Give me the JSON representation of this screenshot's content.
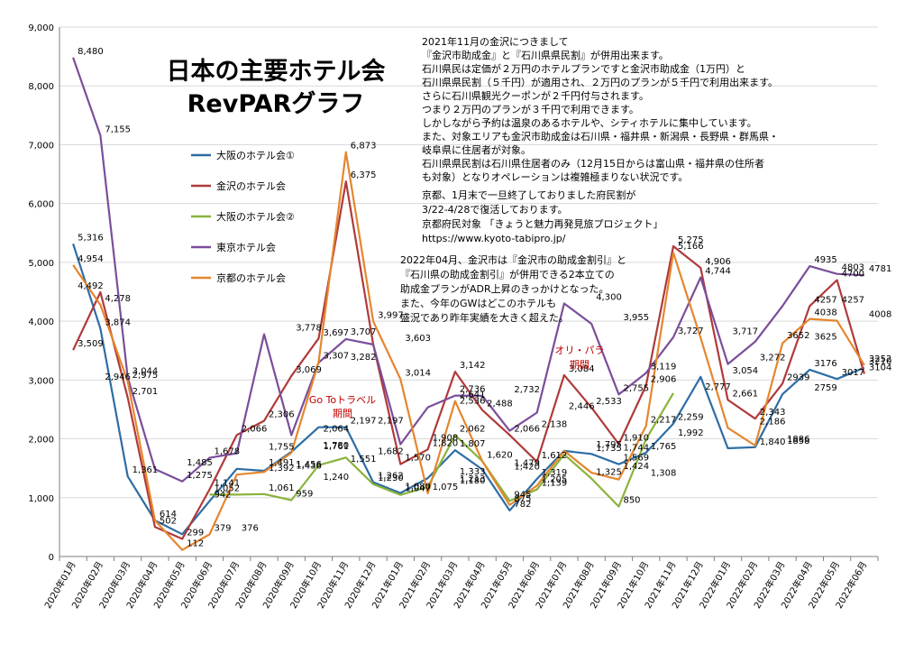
{
  "chart_data": {
    "type": "line",
    "title": [
      "日本の主要ホテル会",
      "RevPARグラフ"
    ],
    "xlabel": "",
    "ylabel": "",
    "ylim": [
      0,
      9000
    ],
    "yticks": [
      "0",
      "1,000",
      "2,000",
      "3,000",
      "4,000",
      "5,000",
      "6,000",
      "7,000",
      "8,000",
      "9,000"
    ],
    "grid": true,
    "legend_position": "left-center",
    "categories": [
      "2020年01月",
      "2020年02月",
      "2020年03月",
      "2020年04月",
      "2020年05月",
      "2020年06月",
      "2020年07月",
      "2020年08月",
      "2020年09月",
      "2020年10月",
      "2020年11月",
      "2020年12月",
      "2021年01月",
      "2021年02月",
      "2021年03月",
      "2021年04月",
      "2021年05月",
      "2021年06月",
      "2021年07月",
      "2021年08月",
      "2021年09月",
      "2021年10月",
      "2021年11月",
      "2021年12月",
      "2022年01月",
      "2022年02月",
      "2022年03月",
      "2022年04月",
      "2022年05月",
      "2022年06月"
    ],
    "series": [
      {
        "name": "大阪のホテル会①",
        "color": "#2e6da4",
        "values": [
          5316,
          3874,
          1361,
          614,
          379,
          942,
          1491,
          1456,
          1780,
          2197,
          2197,
          1262,
          1080,
          1333,
          1807,
          1479,
          782,
          1319,
          1795,
          1744,
          1569,
          1765,
          2259,
          3054,
          1840,
          1858,
          2759,
          3176,
          3017,
          3210
        ]
      },
      {
        "name": "金沢のホテル会",
        "color": "#b03a3a",
        "values": [
          3509,
          4492,
          2701,
          502,
          299,
          1141,
          2066,
          2306,
          3069,
          3707,
          6375,
          3603,
          1570,
          1820,
          3142,
          2488,
          2066,
          1612,
          3084,
          2533,
          1910,
          2906,
          5275,
          4906,
          2661,
          2343,
          2939,
          4257,
          4700,
          3104
        ]
      },
      {
        "name": "大阪のホテル会②",
        "color": "#8ab33d",
        "values": [
          null,
          null,
          null,
          null,
          null,
          1052,
          1052,
          1061,
          959,
          1551,
          1682,
          1230,
          1047,
          1180,
          2062,
          1620,
          945,
          1139,
          1735,
          1325,
          850,
          1992,
          2777,
          null,
          null,
          null,
          null,
          null,
          null,
          null
        ]
      },
      {
        "name": "東京ホテル会",
        "color": "#7a4e9a",
        "values": [
          8480,
          7155,
          3044,
          1485,
          1275,
          1678,
          1755,
          3778,
          2064,
          3297,
          3697,
          3603,
          1908,
          2536,
          2736,
          2732,
          2138,
          2446,
          4300,
          3955,
          2755,
          3119,
          3727,
          4744,
          3272,
          3652,
          4257,
          4935,
          4803,
          4781
        ]
      },
      {
        "name": "京都のホテル会",
        "color": "#e5862e",
        "values": [
          4954,
          4278,
          2975,
          614,
          112,
          376,
          1392,
          1436,
          1761,
          3307,
          6873,
          3997,
          3014,
          1075,
          2641,
          1620,
          875,
          1205,
          1795,
          1424,
          1308,
          2217,
          5166,
          3717,
          2186,
          1886,
          3625,
          4038,
          4008,
          3252
        ]
      }
    ],
    "data_labels": [
      {
        "text": "8,480",
        "category": 0,
        "value": 8480
      },
      {
        "text": "7,155",
        "category": 1,
        "value": 7155
      },
      {
        "text": "5,316",
        "category": 0,
        "value": 5316
      },
      {
        "text": "4,954",
        "category": 0,
        "value": 4954
      },
      {
        "text": "4,492",
        "category": 0,
        "value": 4492
      },
      {
        "text": "3,509",
        "category": 0,
        "value": 3509
      },
      {
        "text": "4,278",
        "category": 1,
        "value": 4278
      },
      {
        "text": "3,874",
        "category": 1,
        "value": 3874
      },
      {
        "text": "2,946",
        "category": 1,
        "value": 2946
      },
      {
        "text": "2,701",
        "category": 2,
        "value": 2701
      },
      {
        "text": "3,044",
        "category": 2,
        "value": 3044
      },
      {
        "text": "2,975",
        "category": 2,
        "value": 2975
      },
      {
        "text": "1,361",
        "category": 2,
        "value": 1361
      },
      {
        "text": "502",
        "category": 3,
        "value": 502
      },
      {
        "text": "614",
        "category": 3,
        "value": 614
      },
      {
        "text": "1,485",
        "category": 4,
        "value": 1485
      },
      {
        "text": "1,275",
        "category": 4,
        "value": 1275
      },
      {
        "text": "299",
        "category": 4,
        "value": 299
      },
      {
        "text": "112",
        "category": 4,
        "value": 112
      },
      {
        "text": "1,052",
        "category": 5,
        "value": 1052
      },
      {
        "text": "379",
        "category": 5,
        "value": 379
      },
      {
        "text": "1,141",
        "category": 5,
        "value": 1141
      },
      {
        "text": "942",
        "category": 5,
        "value": 942
      },
      {
        "text": "1,678",
        "category": 5,
        "value": 1678
      },
      {
        "text": "376",
        "category": 6,
        "value": 376
      },
      {
        "text": "2,066",
        "category": 6,
        "value": 2066
      },
      {
        "text": "1,755",
        "category": 7,
        "value": 1755
      },
      {
        "text": "1,491",
        "category": 7,
        "value": 1491
      },
      {
        "text": "1,392",
        "category": 7,
        "value": 1392
      },
      {
        "text": "1,061",
        "category": 7,
        "value": 1061
      },
      {
        "text": "2,306",
        "category": 7,
        "value": 2306
      },
      {
        "text": "3,778",
        "category": 8,
        "value": 3778
      },
      {
        "text": "1,456",
        "category": 8,
        "value": 1456
      },
      {
        "text": "1,436",
        "category": 8,
        "value": 1436
      },
      {
        "text": "959",
        "category": 8,
        "value": 959
      },
      {
        "text": "3,069",
        "category": 8,
        "value": 3069
      },
      {
        "text": "2,064",
        "category": 9,
        "value": 2064
      },
      {
        "text": "1,780",
        "category": 9,
        "value": 1780
      },
      {
        "text": "1,761",
        "category": 9,
        "value": 1761
      },
      {
        "text": "1,240",
        "category": 9,
        "value": 1240
      },
      {
        "text": "3,697",
        "category": 9,
        "value": 3697
      },
      {
        "text": "3,307",
        "category": 9,
        "value": 3307
      },
      {
        "text": "3,707",
        "category": 10,
        "value": 3707
      },
      {
        "text": "3,282",
        "category": 10,
        "value": 3282
      },
      {
        "text": "6,873",
        "category": 10,
        "value": 6873
      },
      {
        "text": "6,375",
        "category": 10,
        "value": 6375
      },
      {
        "text": "2,197",
        "category": 10,
        "value": 2197
      },
      {
        "text": "1,551",
        "category": 10,
        "value": 1551
      },
      {
        "text": "2,197",
        "category": 11,
        "value": 2197
      },
      {
        "text": "3,997",
        "category": 11,
        "value": 3997
      },
      {
        "text": "1,682",
        "category": 11,
        "value": 1682
      },
      {
        "text": "1,262",
        "category": 11,
        "value": 1262
      },
      {
        "text": "1,230",
        "category": 11,
        "value": 1230
      },
      {
        "text": "3,603",
        "category": 12,
        "value": 3603
      },
      {
        "text": "3,014",
        "category": 12,
        "value": 3014
      },
      {
        "text": "1,570",
        "category": 12,
        "value": 1570
      },
      {
        "text": "1,080",
        "category": 12,
        "value": 1080
      },
      {
        "text": "1,047",
        "category": 12,
        "value": 1047
      },
      {
        "text": "1,908",
        "category": 13,
        "value": 1908
      },
      {
        "text": "1,820",
        "category": 13,
        "value": 1820
      },
      {
        "text": "1,075",
        "category": 13,
        "value": 1075
      },
      {
        "text": "3,142",
        "category": 14,
        "value": 3142
      },
      {
        "text": "2,736",
        "category": 14,
        "value": 2736
      },
      {
        "text": "2,536",
        "category": 14,
        "value": 2536
      },
      {
        "text": "2,641",
        "category": 14,
        "value": 2641
      },
      {
        "text": "2,062",
        "category": 14,
        "value": 2062
      },
      {
        "text": "1,807",
        "category": 14,
        "value": 1807
      },
      {
        "text": "1,333",
        "category": 14,
        "value": 1333
      },
      {
        "text": "1,213",
        "category": 14,
        "value": 1213
      },
      {
        "text": "1,180",
        "category": 14,
        "value": 1180
      },
      {
        "text": "2,488",
        "category": 15,
        "value": 2488
      },
      {
        "text": "1,620",
        "category": 15,
        "value": 1620
      },
      {
        "text": "2,732",
        "category": 16,
        "value": 2732
      },
      {
        "text": "2,066",
        "category": 16,
        "value": 2066
      },
      {
        "text": "1,479",
        "category": 16,
        "value": 1479
      },
      {
        "text": "1,420",
        "category": 16,
        "value": 1420
      },
      {
        "text": "945",
        "category": 16,
        "value": 945
      },
      {
        "text": "875",
        "category": 16,
        "value": 875
      },
      {
        "text": "782",
        "category": 16,
        "value": 782
      },
      {
        "text": "2,138",
        "category": 17,
        "value": 2138
      },
      {
        "text": "1,612",
        "category": 17,
        "value": 1612
      },
      {
        "text": "1,319",
        "category": 17,
        "value": 1319
      },
      {
        "text": "1,205",
        "category": 17,
        "value": 1205
      },
      {
        "text": "1,139",
        "category": 17,
        "value": 1139
      },
      {
        "text": "2,446",
        "category": 18,
        "value": 2446
      },
      {
        "text": "3,084",
        "category": 18,
        "value": 3084
      },
      {
        "text": "4,300",
        "category": 19,
        "value": 4300
      },
      {
        "text": "2,533",
        "category": 19,
        "value": 2533
      },
      {
        "text": "1,795",
        "category": 19,
        "value": 1795
      },
      {
        "text": "1,735",
        "category": 19,
        "value": 1735
      },
      {
        "text": "1,325",
        "category": 19,
        "value": 1325
      },
      {
        "text": "3,955",
        "category": 20,
        "value": 3955
      },
      {
        "text": "1,910",
        "category": 20,
        "value": 1910
      },
      {
        "text": "1,744",
        "category": 20,
        "value": 1744
      },
      {
        "text": "1,569",
        "category": 20,
        "value": 1569
      },
      {
        "text": "1,424",
        "category": 20,
        "value": 1424
      },
      {
        "text": "850",
        "category": 20,
        "value": 850
      },
      {
        "text": "2,755",
        "category": 20,
        "value": 2755
      },
      {
        "text": "3,119",
        "category": 21,
        "value": 3119
      },
      {
        "text": "2,906",
        "category": 21,
        "value": 2906
      },
      {
        "text": "2,217",
        "category": 21,
        "value": 2217
      },
      {
        "text": "1,765",
        "category": 21,
        "value": 1765
      },
      {
        "text": "1,308",
        "category": 21,
        "value": 1308
      },
      {
        "text": "5,275",
        "category": 22,
        "value": 5275
      },
      {
        "text": "5,166",
        "category": 22,
        "value": 5166
      },
      {
        "text": "3,727",
        "category": 22,
        "value": 3727
      },
      {
        "text": "2,259",
        "category": 22,
        "value": 2259
      },
      {
        "text": "1,992",
        "category": 22,
        "value": 1992
      },
      {
        "text": "4,906",
        "category": 23,
        "value": 4906
      },
      {
        "text": "4,744",
        "category": 23,
        "value": 4744
      },
      {
        "text": "2,777",
        "category": 23,
        "value": 2777
      },
      {
        "text": "3,717",
        "category": 24,
        "value": 3717
      },
      {
        "text": "3,054",
        "category": 24,
        "value": 3054
      },
      {
        "text": "2,661",
        "category": 24,
        "value": 2661
      },
      {
        "text": "3,272",
        "category": 25,
        "value": 3272
      },
      {
        "text": "2,343",
        "category": 25,
        "value": 2343
      },
      {
        "text": "2,186",
        "category": 25,
        "value": 2186
      },
      {
        "text": "1,840",
        "category": 25,
        "value": 1840
      },
      {
        "text": "1886",
        "category": 26,
        "value": 1886
      },
      {
        "text": "1858",
        "category": 26,
        "value": 1858
      },
      {
        "text": "3652",
        "category": 26,
        "value": 3652
      },
      {
        "text": "2939",
        "category": 26,
        "value": 2939
      },
      {
        "text": "3625",
        "category": 27,
        "value": 3625
      },
      {
        "text": "4257",
        "category": 27,
        "value": 4257
      },
      {
        "text": "4038",
        "category": 27,
        "value": 4038
      },
      {
        "text": "3176",
        "category": 27,
        "value": 3176
      },
      {
        "text": "2759",
        "category": 27,
        "value": 2759
      },
      {
        "text": "4935",
        "category": 27,
        "value": 4935
      },
      {
        "text": "4257",
        "category": 28,
        "value": 4257
      },
      {
        "text": "4803",
        "category": 28,
        "value": 4803
      },
      {
        "text": "4700",
        "category": 28,
        "value": 4700
      },
      {
        "text": "3017",
        "category": 28,
        "value": 3017
      },
      {
        "text": "4008",
        "category": 29,
        "value": 4008
      },
      {
        "text": "4781",
        "category": 29,
        "value": 4781
      },
      {
        "text": "3252",
        "category": 29,
        "value": 3252
      },
      {
        "text": "3104",
        "category": 29,
        "value": 3104
      },
      {
        "text": "3210",
        "category": 29,
        "value": 3210
      }
    ],
    "annotations": {
      "kanazawa_note": [
        "2021年11月の金沢につきまして",
        "『金沢市助成金』と『石川県県民割』が併用出来ます。",
        "石川県民は定価が２万円のホテルプランですと金沢市助成金（1万円）と",
        "石川県県民割（５千円）が適用され、２万円のプランが５千円で利用出来ます。",
        "さらに石川県観光クーポンが２千円付与されます。",
        "つまり２万円のプランが３千円で利用できます。",
        "しかしながら予約は温泉のあるホテルや、シティホテルに集中しています。",
        "また、対象エリアも金沢市助成金は石川県・福井県・新潟県・長野県・群馬県・",
        "岐阜県に住居者が対象。",
        "石川県県民割は石川県住居者のみ（12月15日からは富山県・福井県の住所者",
        "も対象）となりオペレーションは複雑極まりない状況です。"
      ],
      "kyoto_note": [
        "京都、1月末で一旦終了しておりました府民割が",
        "3/22-4/28で復活しております。",
        "京都府民対象 「きょうと魅力再発見旅プロジェクト」",
        "https://www.kyoto-tabipro.jp/"
      ],
      "april_note": [
        "2022年04月、金沢市は『金沢市の助成金割引』と",
        "『石川県の助成金割引』が併用できる2本立ての",
        "助成金プランがADR上昇のきっかけとなった。",
        "また、今年のGWはどこのホテルも",
        "盛況であり昨年実績を大きく超えた。"
      ],
      "goto_label": [
        "Go Toトラベル",
        "期間"
      ],
      "olympic_label": [
        "オリ・パラ",
        "期間"
      ]
    }
  }
}
